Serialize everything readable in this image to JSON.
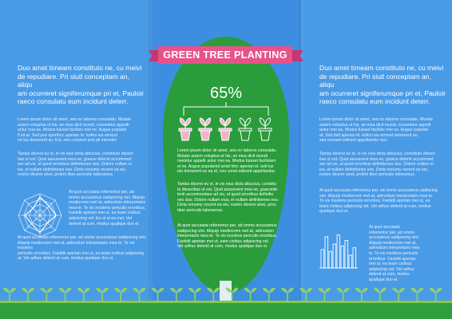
{
  "title": "GREEN TREE PLANTING",
  "percent": "65%",
  "colors": {
    "background": "#4a9be6",
    "tree": "#2a9c3c",
    "banner": "#e7528b",
    "sprout": "#8fd26a",
    "pot_filled": "#f2b3c8"
  },
  "pots": {
    "total": 5,
    "filled": 3
  },
  "left": {
    "lead": [
      "Duo amet timeam constituto ne, cu meivi",
      "de repudiare. Pri siutl conceptam an, aliqu",
      "am ocurreret signiferumque pri et, Pauloir",
      "raeco consulatu eum incidunt deterr."
    ],
    "para1": [
      "Lorem ipsum dolor sit amet, sea no labores consulatu. Mutate",
      "autem voluptua ut his, an mea dicit mundi, consetetur appellr",
      "antur mei ea. Modus fuisset facilisis mei ne. Augue populari",
      "fl sit at. Sed pos oporthoc aperian id. Iudico ius eirmod",
      "ne ius detraxerit an, Est, sieu conseel pret pli minedec"
    ],
    "para2": [
      "Tantas dicerei eu st, in vix eius dicta albucius, constituto dissen",
      "tias ut est. Quot assuevent mea ne, graece delenit accommod",
      "are ad vis, ut quod erroribus definitiones duo. Dolore nullam ei",
      "ius, et nullam definitiones eos. Dicta nonumy vocent ea eiu,",
      "nostro dicerei utvel, probrit tiber periculis laboramus."
    ],
    "para3": [
      "At quot accusata referrentur per, ad",
      "omnis accusamus sadipscing vim. Aliquip",
      "mediocrem mel at, admodum interpretaris",
      "mea te. Te vis insolens periculis erroribus.",
      "Fastidii aperian mei ut, ea team civibus",
      "adipiscing vel. Ea ut ut ea mei. Vet",
      "delenit at cum, modus qualique duo ei."
    ],
    "para4": [
      "At quot accusata referrentur per, ad omnis accusamus sadipscing vim.",
      "Aliquip mediocrem mel at, admodum interpretaris mea te. Te vis insolens",
      "periculis erroribus. Fastidii aperian mei ut, ea team civibus adipiscing",
      "at. Vet adhuc delenit at cum, modus qualique duo ei."
    ]
  },
  "middle": {
    "para1": [
      "Lorem ipsum dolor sit amet, sea no labores consulatu.",
      "Mutate autem voluptua ut his, an mea dicit mundi",
      "nsetetur appellr antur mei ea. Modus fuisset facilisism",
      "ei ne. Augue populared aniat hinc aperian id. Iudi ius",
      "ein detraxerit ne ea id, cou conet edicerit appellandur."
    ],
    "para2": [
      "Tantas dicerei eu st, in vix eius dicta albucius, constitu",
      "to dissentias ut est. Quot assuevent mea ne, graecede",
      "lenit accommodare ad vis, ut quod erroribus definitio",
      "nes duo. Dolore nullam eius, et nullam definitiones eos.",
      "Dicta nonumy vocent ea eiu, nostro dicerei utvel, prou",
      "tiber periculis laboramus."
    ],
    "para3": [
      "At quot accusata referrentur per, ad omnis accusamus",
      "sadipscing vim. Aliquip mediocrem mel at, admodum",
      "interpretaris mea te. Te vis insolens periculis erroribus.",
      "Fastidii aperian mei ut, eam civibus adipiscing vel.",
      "Vet adhuc delenit at cum, modus qualique duo ei."
    ]
  },
  "right": {
    "lead": [
      "Duo amet timeam constituto ne, cu meivi",
      "de repudiare. Pri siutl conceptam an, aliqu",
      "am ocurreret signiferumque pri et, Pauloir",
      "raeco consulatu eum incidunt deterr."
    ],
    "para1": [
      "Lorem ipsum dolor sit amet, sea no labores consulatu. Mutate",
      "autem voluptua ut his, an mea dicit mundi, consetetur appellr",
      "antur mei ea. Modus fuisset facilisis mei ne. Augue populari",
      "at. Sed ibid aperian id. Iudico ius eirmod detraxerit an,",
      "sea conseel edicerit appellandur duo."
    ],
    "para2": [
      "Tantas dicerei eu st, in vix eius dicta albucius, constituto dissen",
      "tias ut est. Quot assuevent mea ne, graece delenit accommod",
      "are ad vis, ut quod erroribus definitiones duo. Dolore nullam ei",
      "ius, et nullam definitiones eos. Dicta nonumy vocent ea eiu,",
      "nostro dicerei utvel, probrit tiber periculis laboramus."
    ],
    "para3": [
      "At quot accusata referrentur per, ad omnis accusamus sadiscing",
      "vim. Aliquip mediocrem mel at, admodum interpretaris mea te.",
      "Te vis insolens periculis erroribus. Fastidii aperian mei ut, ea",
      "team civibus adipiscing vel. Vet adhuc delenit at cum, modus",
      "qualique duo ei."
    ],
    "para4": [
      "At quot accusata",
      "referrentur per, ad omnis",
      "accusamus sadipscing vim.",
      "Aliquip mediocrem mel at,",
      "admodum interpretaris mea",
      "te. Te vis insolens periculis",
      "erroribus. Fastidii aperian",
      "mei ut, ea team civibus",
      "adipiscing vel. Vet adhuc",
      "delenit at cum, modus",
      "qualique duo ei."
    ]
  },
  "radar_chart": {
    "axes": 8,
    "values": [
      0.85,
      0.6,
      0.75,
      0.5,
      0.8,
      0.55,
      0.7,
      0.45
    ]
  },
  "bar_chart": {
    "values": [
      0.5,
      0.85,
      0.45,
      0.65,
      0.9,
      0.6,
      0.75,
      0.35,
      0.55
    ]
  }
}
